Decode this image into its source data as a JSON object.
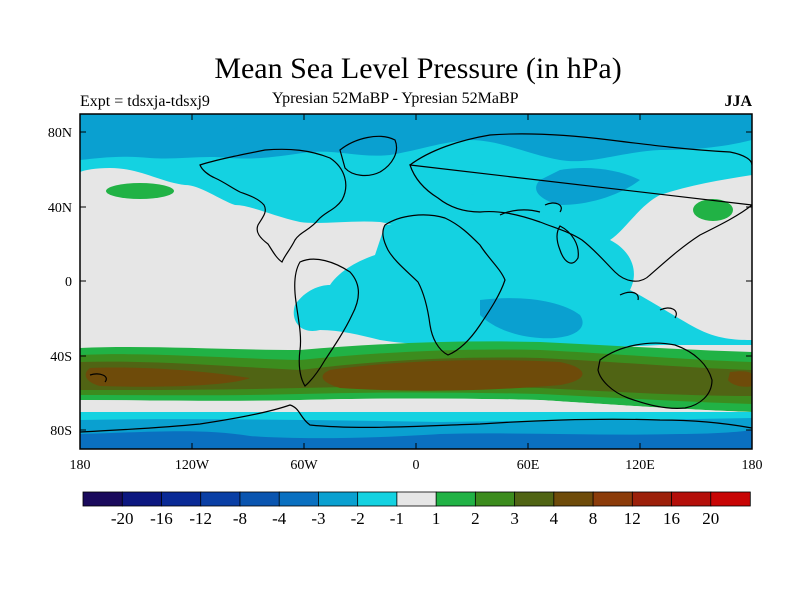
{
  "title": "Mean Sea Level Pressure (in hPa)",
  "subtitle_left": "Expt = tdsxja-tdsxj9",
  "subtitle_center": "Ypresian  52MaBP - Ypresian  52MaBP",
  "subtitle_right": "JJA",
  "lat_ticks": [
    "80N",
    "40N",
    "0",
    "40S",
    "80S"
  ],
  "lon_ticks": [
    "180",
    "120W",
    "60W",
    "0",
    "60E",
    "120E",
    "180"
  ],
  "colorbar": {
    "colors": [
      "#1a0a5c",
      "#0c1780",
      "#0a2a96",
      "#0a3fa5",
      "#0a55b0",
      "#0a70c0",
      "#0aa0d0",
      "#14d2e1",
      "#e6e6e6",
      "#21b245",
      "#3c8c1e",
      "#506414",
      "#6e4b0a",
      "#8c3c0a",
      "#9c200a",
      "#b40f0a",
      "#c80505"
    ],
    "labels": [
      "-20",
      "-16",
      "-12",
      "-8",
      "-4",
      "-3",
      "-2",
      "-1",
      "1",
      "2",
      "3",
      "4",
      "8",
      "12",
      "16",
      "20"
    ]
  },
  "colors": {
    "land_neutral": "#e6e6e6",
    "light_cyan": "#14d2e1",
    "mid_blue": "#0aa0d0",
    "green": "#21b245",
    "dark_green": "#3c8c1e",
    "brown": "#6e4b0a",
    "coast": "#000000"
  }
}
